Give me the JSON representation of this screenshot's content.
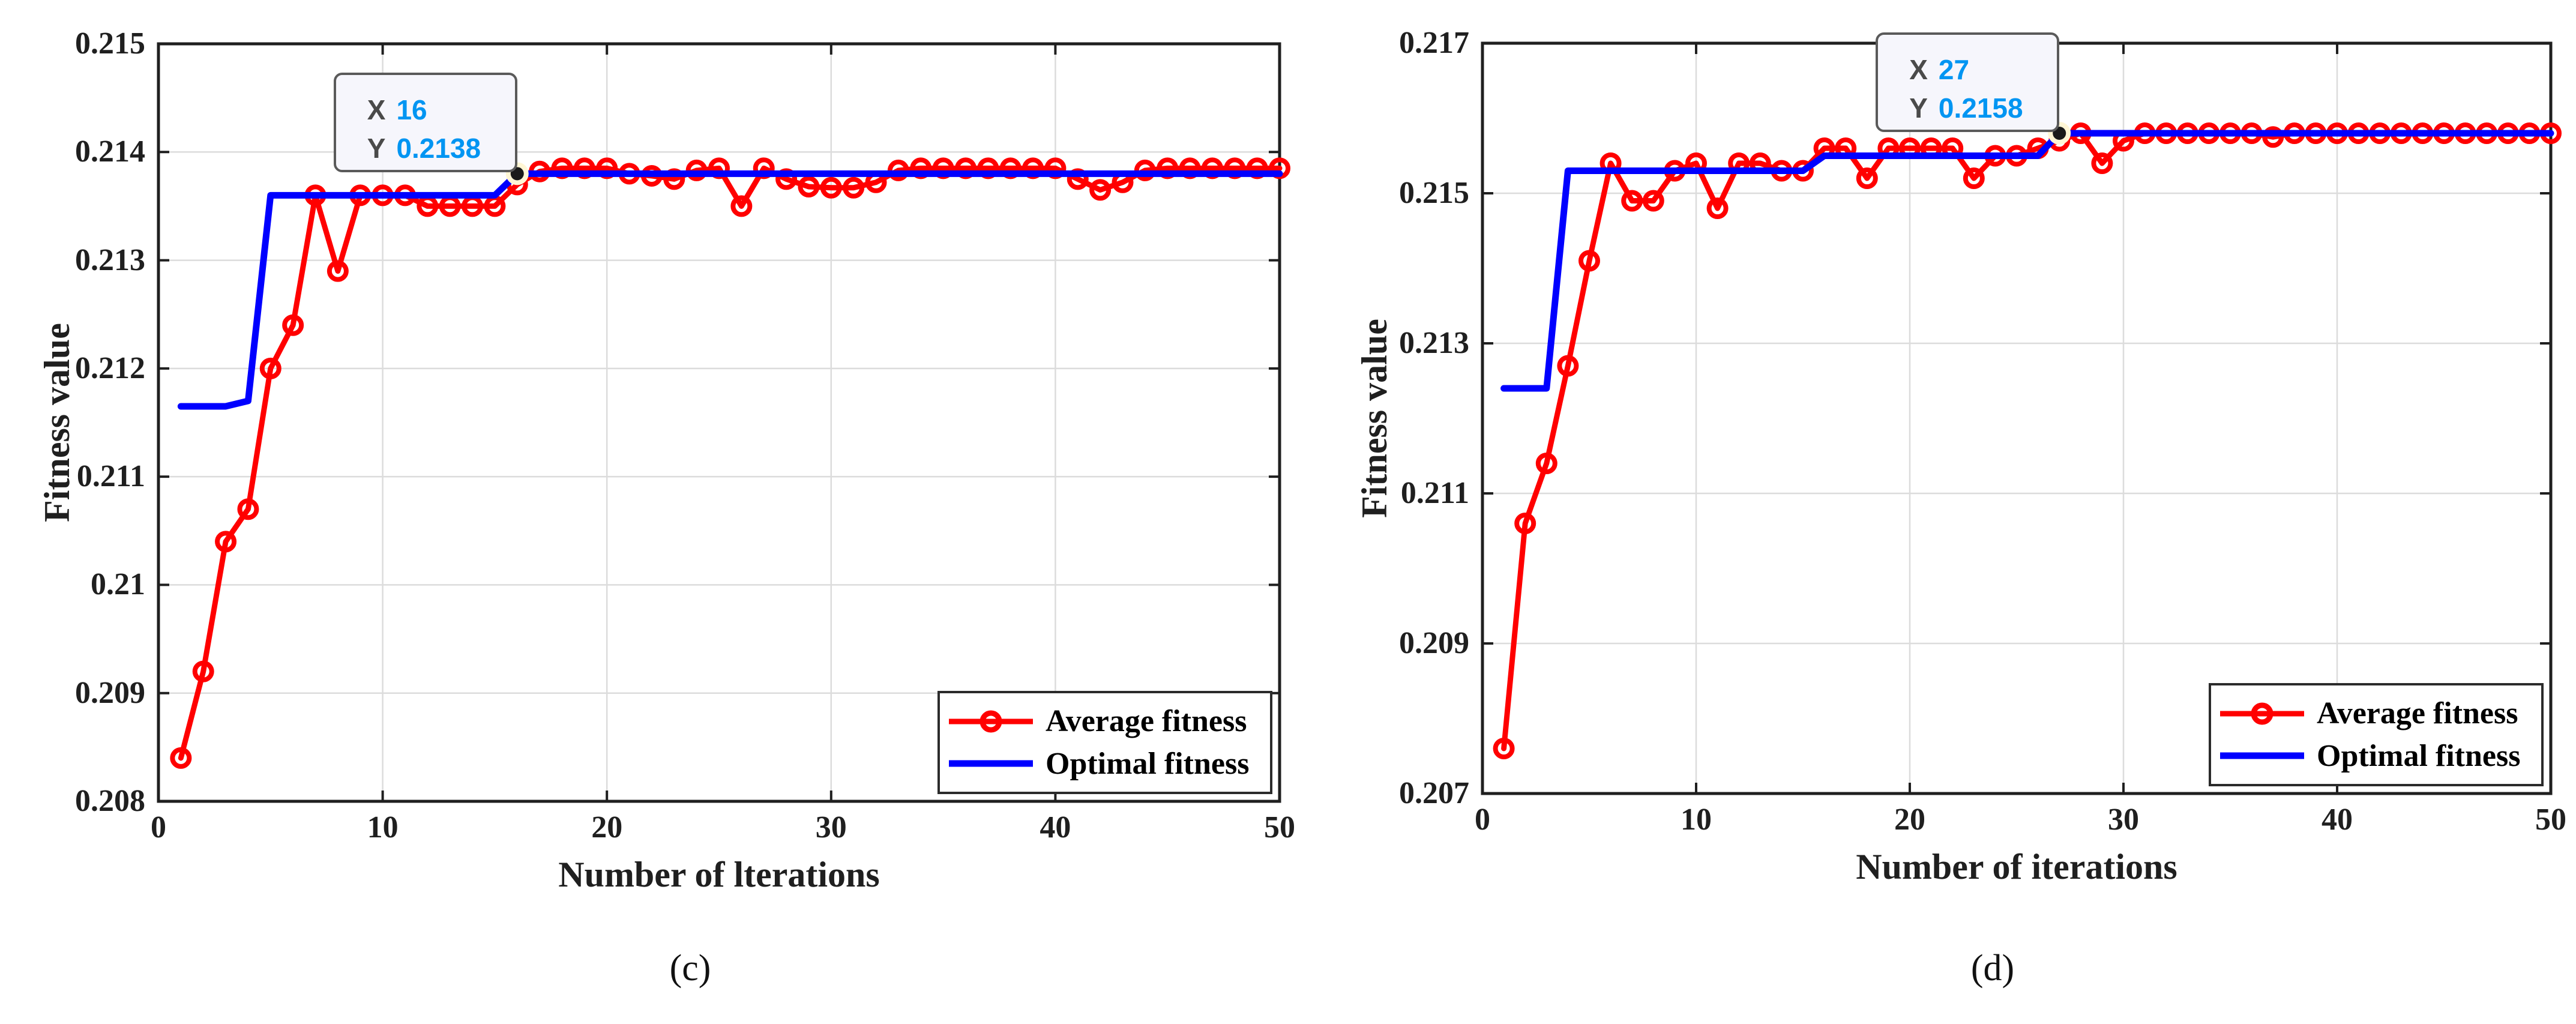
{
  "figure_caption_left": "(c)",
  "figure_caption_right": "(d)",
  "colors": {
    "average_series": "#ff0000",
    "optimal_series": "#0000ff",
    "grid": "#dcdcdc",
    "axis": "#1f1f1f",
    "datatip_value": "#0095f2",
    "datatip_key": "#4a4a4a",
    "datatip_background": "#f6f6fc",
    "datatip_border": "#5a5a5a",
    "datatip_point_halo": "#fff6d5",
    "datatip_point": "#1a1a1a"
  },
  "chart_data": [
    {
      "type": "line",
      "caption": "(c)",
      "xlabel": "Number of lterations",
      "ylabel": "Fitness value",
      "xlim": [
        0,
        50
      ],
      "ylim": [
        0.208,
        0.215
      ],
      "xticks": [
        0,
        10,
        20,
        30,
        40,
        50
      ],
      "xtick_labels": [
        "0",
        "10",
        "20",
        "30",
        "40",
        "50"
      ],
      "yticks": [
        0.208,
        0.209,
        0.21,
        0.211,
        0.212,
        0.213,
        0.214,
        0.215
      ],
      "ytick_labels": [
        "0.208",
        "0.209",
        "0.21",
        "0.211",
        "0.212",
        "0.213",
        "0.214",
        "0.215"
      ],
      "grid": true,
      "x_start": 1,
      "legend": {
        "position": "southeast",
        "entries": [
          {
            "label": "Average fitness",
            "color": "#ff0000",
            "marker": "circle"
          },
          {
            "label": "Optimal fitness",
            "color": "#0000ff",
            "marker": "none"
          }
        ]
      },
      "datatip": {
        "x": 16,
        "y": 0.2138,
        "x_key": "X",
        "x_value": "16",
        "y_key": "Y",
        "y_value": "0.2138"
      },
      "series": [
        {
          "name": "Average fitness",
          "color": "#ff0000",
          "marker": "circle",
          "values": [
            0.2084,
            0.2092,
            0.2104,
            0.2107,
            0.212,
            0.2124,
            0.2136,
            0.2129,
            0.2136,
            0.2136,
            0.2136,
            0.2135,
            0.2135,
            0.2135,
            0.2135,
            0.2137,
            0.21382,
            0.21385,
            0.21385,
            0.21385,
            0.2138,
            0.21378,
            0.21375,
            0.21383,
            0.21385,
            0.2135,
            0.21385,
            0.21375,
            0.21368,
            0.21367,
            0.21367,
            0.21372,
            0.21383,
            0.21385,
            0.21385,
            0.21385,
            0.21385,
            0.21385,
            0.21385,
            0.21385,
            0.21375,
            0.21365,
            0.21372,
            0.21383,
            0.21385,
            0.21385,
            0.21385,
            0.21385,
            0.21385,
            0.21385
          ]
        },
        {
          "name": "Optimal fitness",
          "color": "#0000ff",
          "marker": "none",
          "values": [
            0.21165,
            0.21165,
            0.21165,
            0.2117,
            0.2136,
            0.2136,
            0.2136,
            0.2136,
            0.2136,
            0.2136,
            0.2136,
            0.2136,
            0.2136,
            0.2136,
            0.2136,
            0.2138,
            0.2138,
            0.2138,
            0.2138,
            0.2138,
            0.2138,
            0.2138,
            0.2138,
            0.2138,
            0.2138,
            0.2138,
            0.2138,
            0.2138,
            0.2138,
            0.2138,
            0.2138,
            0.2138,
            0.2138,
            0.2138,
            0.2138,
            0.2138,
            0.2138,
            0.2138,
            0.2138,
            0.2138,
            0.2138,
            0.2138,
            0.2138,
            0.2138,
            0.2138,
            0.2138,
            0.2138,
            0.2138,
            0.2138,
            0.2138
          ]
        }
      ]
    },
    {
      "type": "line",
      "caption": "(d)",
      "xlabel": "Number of iterations",
      "ylabel": "Fitness value",
      "xlim": [
        0,
        50
      ],
      "ylim": [
        0.207,
        0.217
      ],
      "xticks": [
        0,
        10,
        20,
        30,
        40,
        50
      ],
      "xtick_labels": [
        "0",
        "10",
        "20",
        "30",
        "40",
        "50"
      ],
      "yticks": [
        0.207,
        0.209,
        0.211,
        0.213,
        0.215,
        0.217
      ],
      "ytick_labels": [
        "0.207",
        "0.209",
        "0.211",
        "0.213",
        "0.215",
        "0.217"
      ],
      "grid": true,
      "x_start": 1,
      "legend": {
        "position": "southeast",
        "entries": [
          {
            "label": "Average fitness",
            "color": "#ff0000",
            "marker": "circle"
          },
          {
            "label": "Optimal fitness",
            "color": "#0000ff",
            "marker": "none"
          }
        ]
      },
      "datatip": {
        "x": 27,
        "y": 0.2158,
        "x_key": "X",
        "x_value": "27",
        "y_key": "Y",
        "y_value": "0.2158"
      },
      "series": [
        {
          "name": "Average fitness",
          "color": "#ff0000",
          "marker": "circle",
          "values": [
            0.2076,
            0.2106,
            0.2114,
            0.2127,
            0.2141,
            0.2154,
            0.2149,
            0.2149,
            0.2153,
            0.2154,
            0.2148,
            0.2154,
            0.2154,
            0.2153,
            0.2153,
            0.2156,
            0.2156,
            0.2152,
            0.2156,
            0.2156,
            0.2156,
            0.2156,
            0.2152,
            0.2155,
            0.2155,
            0.2156,
            0.2157,
            0.2158,
            0.2154,
            0.2157,
            0.2158,
            0.2158,
            0.2158,
            0.2158,
            0.2158,
            0.2158,
            0.21575,
            0.2158,
            0.2158,
            0.2158,
            0.2158,
            0.2158,
            0.2158,
            0.2158,
            0.2158,
            0.2158,
            0.2158,
            0.2158,
            0.2158,
            0.2158
          ]
        },
        {
          "name": "Optimal fitness",
          "color": "#0000ff",
          "marker": "none",
          "values": [
            0.2124,
            0.2124,
            0.2124,
            0.2153,
            0.2153,
            0.2153,
            0.2153,
            0.2153,
            0.2153,
            0.2153,
            0.2153,
            0.2153,
            0.2153,
            0.2153,
            0.2153,
            0.2155,
            0.2155,
            0.2155,
            0.2155,
            0.2155,
            0.2155,
            0.2155,
            0.2155,
            0.2155,
            0.2155,
            0.2155,
            0.2158,
            0.2158,
            0.2158,
            0.2158,
            0.2158,
            0.2158,
            0.2158,
            0.2158,
            0.2158,
            0.2158,
            0.2158,
            0.2158,
            0.2158,
            0.2158,
            0.2158,
            0.2158,
            0.2158,
            0.2158,
            0.2158,
            0.2158,
            0.2158,
            0.2158,
            0.2158,
            0.2158
          ]
        }
      ]
    }
  ]
}
